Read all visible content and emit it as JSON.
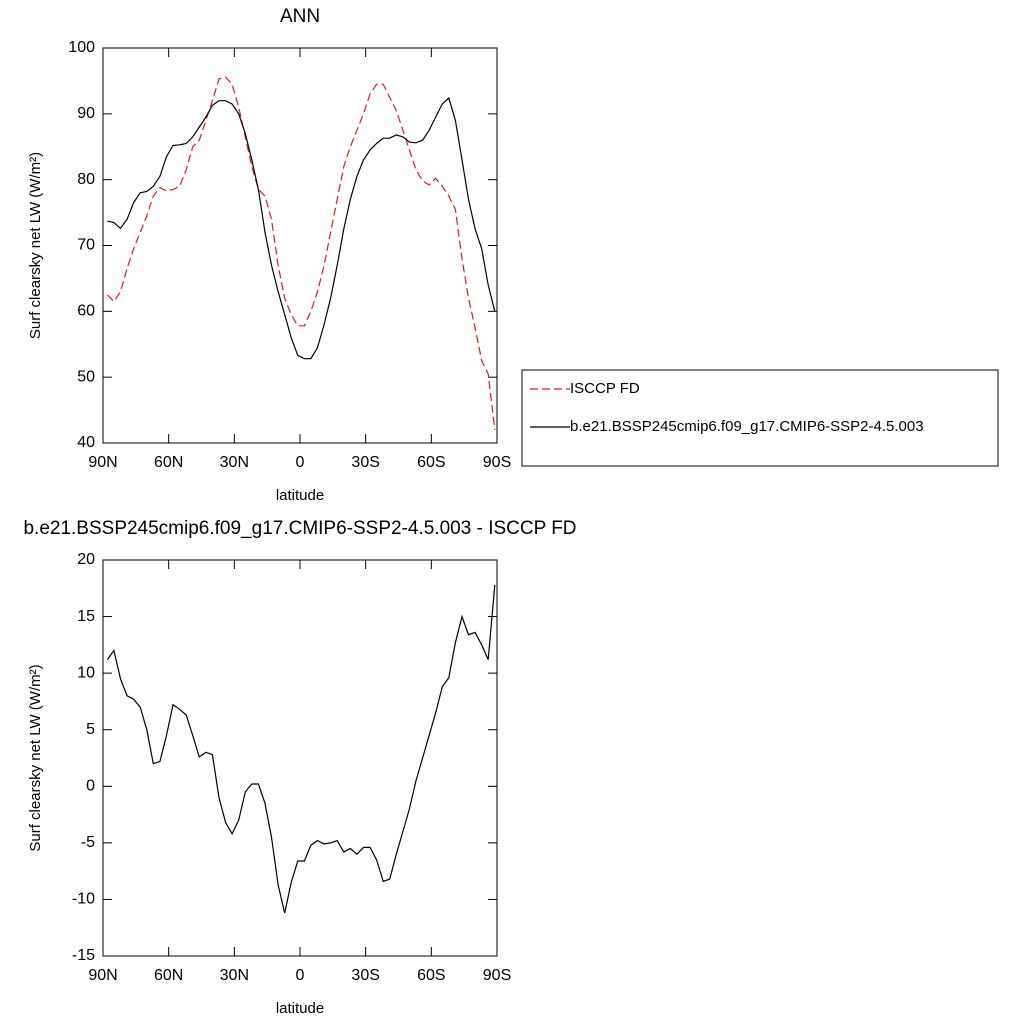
{
  "chart_data": [
    {
      "type": "line",
      "title": "ANN",
      "x_label": "latitude",
      "y_label": "Surf clearsky net LW (W/m²)",
      "x": [
        88,
        85,
        82,
        79,
        76,
        73,
        70,
        67,
        64,
        61,
        58,
        55,
        52,
        49,
        46,
        43,
        40,
        37,
        34,
        31,
        28,
        25,
        22,
        19,
        16,
        13,
        10,
        7,
        4,
        1,
        -2,
        -5,
        -8,
        -11,
        -14,
        -17,
        -20,
        -23,
        -26,
        -29,
        -32,
        -35,
        -38,
        -41,
        -44,
        -47,
        -50,
        -53,
        -56,
        -59,
        -62,
        -65,
        -68,
        -71,
        -74,
        -77,
        -80,
        -83,
        -86,
        -89
      ],
      "series": [
        {
          "name": "ISCCP FD",
          "color": "#e41a1c",
          "dash": true,
          "values": [
            62.5,
            61.5,
            63,
            66.5,
            69.5,
            72,
            74.5,
            77.5,
            78.8,
            78.3,
            78.5,
            79,
            81.5,
            85,
            86,
            89,
            92,
            95.3,
            95.6,
            94.5,
            91,
            86.5,
            82,
            78.5,
            77.5,
            74,
            67,
            62,
            59.5,
            57.8,
            57.8,
            60,
            63,
            67,
            72,
            77,
            82,
            85,
            87.5,
            90,
            93,
            94.5,
            94.5,
            92.5,
            90.5,
            87.5,
            84.5,
            81.5,
            79.8,
            79.2,
            80.2,
            79,
            77.5,
            75.5,
            68,
            62,
            57.5,
            52.5,
            50.5,
            42
          ]
        },
        {
          "name": "b.e21.BSSP245cmip6.f09_g17.CMIP6-SSP2-4.5.003",
          "color": "#000000",
          "dash": false,
          "values": [
            73.7,
            73.5,
            72.6,
            74,
            76.5,
            78,
            78.2,
            79,
            80.5,
            83.5,
            85.2,
            85.3,
            85.5,
            86.5,
            88,
            89.5,
            91.3,
            92,
            92,
            91.5,
            90,
            87,
            83,
            78.5,
            72,
            67,
            63,
            59.5,
            56,
            53.3,
            52.8,
            52.8,
            54.5,
            58,
            62,
            67,
            72.5,
            77,
            80.5,
            83,
            84.5,
            85.5,
            86.3,
            86.3,
            86.8,
            86.5,
            85.7,
            85.6,
            86,
            87.5,
            89.5,
            91.5,
            92.4,
            89,
            83,
            77,
            72.5,
            69.5,
            64,
            60
          ]
        }
      ],
      "xlim": [
        90,
        -90
      ],
      "xticks": [
        {
          "value": 90,
          "label": "90N"
        },
        {
          "value": 60,
          "label": "60N"
        },
        {
          "value": 30,
          "label": "30N"
        },
        0,
        {
          "value": -30,
          "label": "30S"
        },
        {
          "value": -60,
          "label": "60S"
        },
        {
          "value": -90,
          "label": "90S"
        }
      ],
      "ylim": [
        40,
        100
      ],
      "yticks": [
        40,
        50,
        60,
        70,
        80,
        90,
        100
      ],
      "legend": "right"
    },
    {
      "type": "line",
      "title": "b.e21.BSSP245cmip6.f09_g17.CMIP6-SSP2-4.5.003 - ISCCP FD",
      "x_label": "latitude",
      "y_label": "Surf clearsky net LW (W/m²)",
      "x": [
        88,
        85,
        82,
        79,
        76,
        73,
        70,
        67,
        64,
        61,
        58,
        55,
        52,
        49,
        46,
        43,
        40,
        37,
        34,
        31,
        28,
        25,
        22,
        19,
        16,
        13,
        10,
        7,
        4,
        1,
        -2,
        -5,
        -8,
        -11,
        -14,
        -17,
        -20,
        -23,
        -26,
        -29,
        -32,
        -35,
        -38,
        -41,
        -44,
        -47,
        -50,
        -53,
        -56,
        -59,
        -62,
        -65,
        -68,
        -71,
        -74,
        -77,
        -80,
        -83,
        -86,
        -89
      ],
      "values": [
        11.2,
        12,
        9.5,
        8,
        7.7,
        7,
        5,
        2,
        2.2,
        4.5,
        7.2,
        6.8,
        6.3,
        4.5,
        2.6,
        3,
        2.8,
        -1,
        -3.2,
        -4.2,
        -3,
        -0.5,
        0.2,
        0.2,
        -1.5,
        -4.5,
        -8.7,
        -11.2,
        -8.5,
        -6.6,
        -6.6,
        -5.2,
        -4.8,
        -5.1,
        -5,
        -4.8,
        -5.8,
        -5.5,
        -6,
        -5.4,
        -5.4,
        -6.5,
        -8.4,
        -8.2,
        -6,
        -4,
        -2,
        0.5,
        2.5,
        4.5,
        6.5,
        8.8,
        9.6,
        12.7,
        15,
        13.4,
        13.6,
        12.5,
        11.2,
        17.8
      ],
      "color": "#000000",
      "xlim": [
        90,
        -90
      ],
      "xticks": [
        {
          "value": 90,
          "label": "90N"
        },
        {
          "value": 60,
          "label": "60N"
        },
        {
          "value": 30,
          "label": "30N"
        },
        0,
        {
          "value": -30,
          "label": "30S"
        },
        {
          "value": -60,
          "label": "60S"
        },
        {
          "value": -90,
          "label": "90S"
        }
      ],
      "ylim": [
        -15,
        20
      ],
      "yticks": [
        -15,
        -10,
        -5,
        0,
        5,
        10,
        15,
        20
      ]
    }
  ]
}
